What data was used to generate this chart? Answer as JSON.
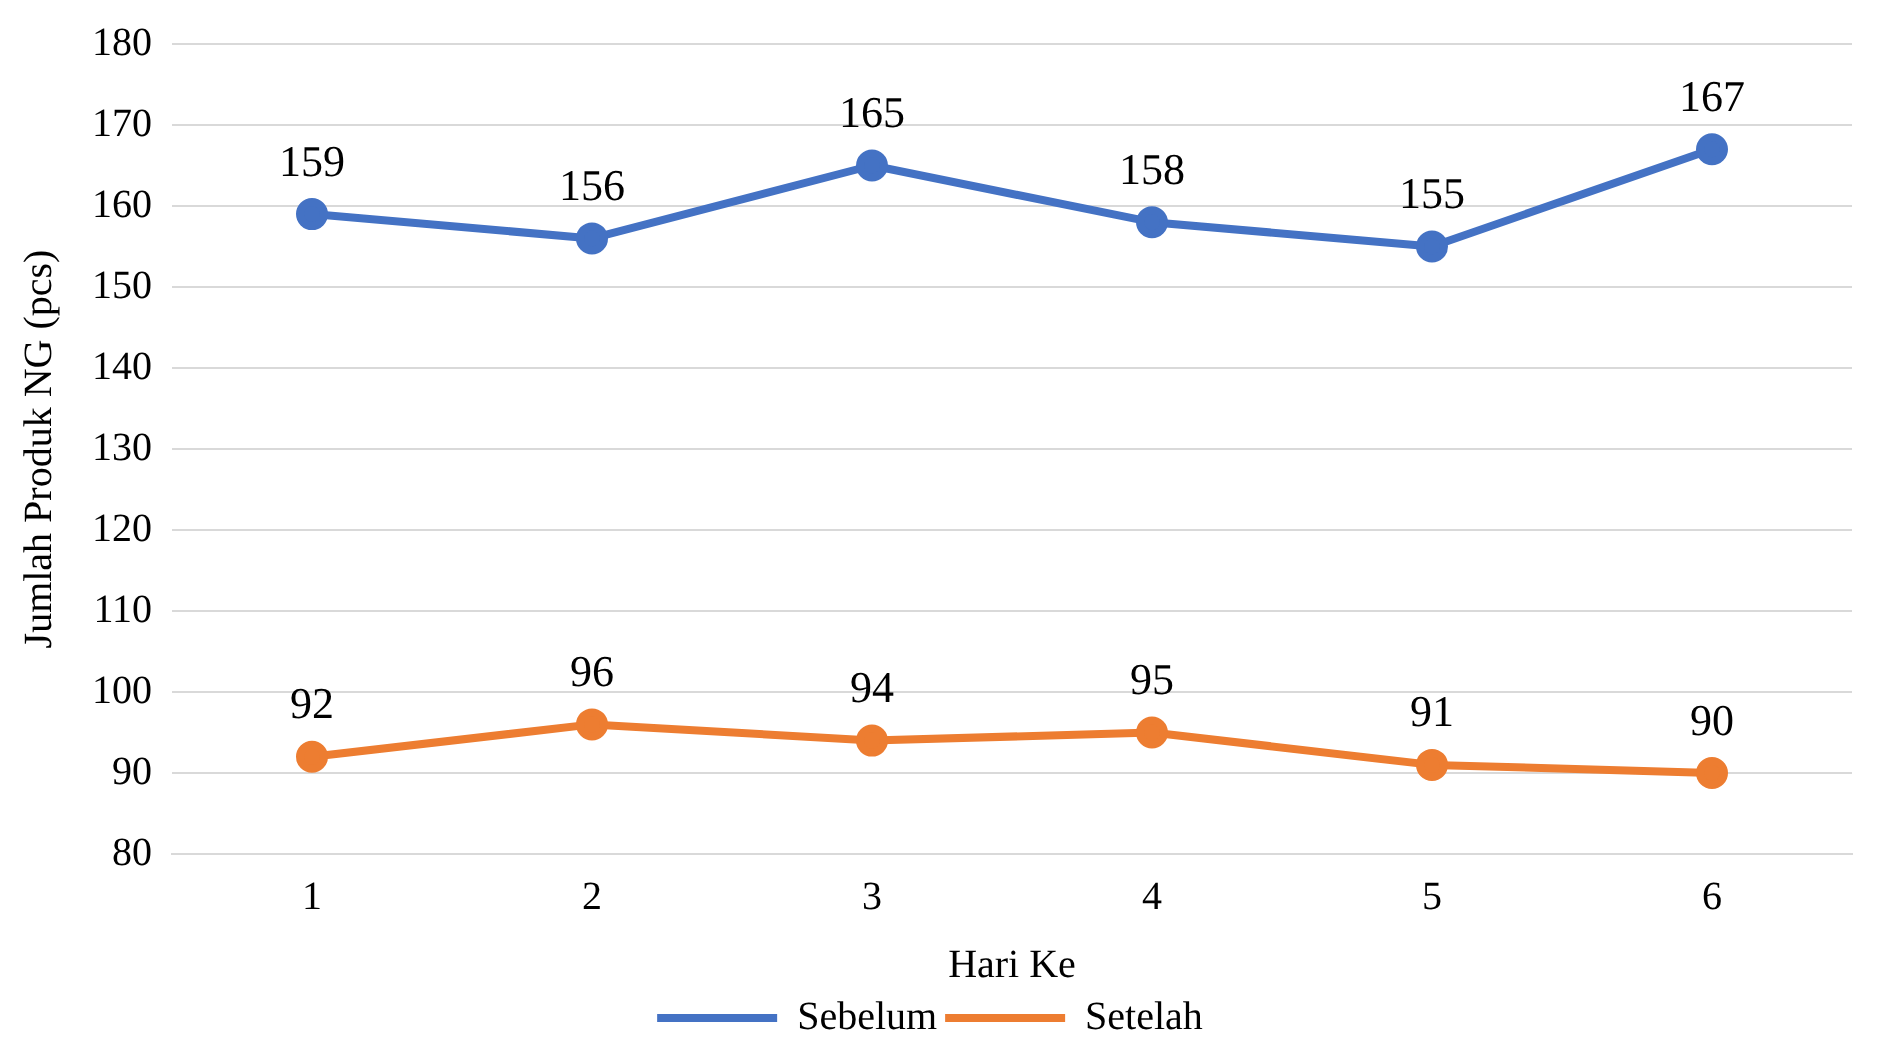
{
  "chart_data": {
    "type": "line",
    "xlabel": "Hari Ke",
    "ylabel": "Jumlah Produk NG (pcs)",
    "categories": [
      "1",
      "2",
      "3",
      "4",
      "5",
      "6"
    ],
    "series": [
      {
        "name": "Sebelum",
        "color": "#4472c4",
        "values": [
          159,
          156,
          165,
          158,
          155,
          167
        ]
      },
      {
        "name": "Setelah",
        "color": "#ed7d31",
        "values": [
          92,
          96,
          94,
          95,
          91,
          90
        ]
      }
    ],
    "ylim": [
      80,
      180
    ],
    "yticks": [
      80,
      90,
      100,
      110,
      120,
      130,
      140,
      150,
      160,
      170,
      180
    ],
    "grid": "y",
    "legend": "bottom",
    "marker": "circle",
    "line_style": "solid",
    "data_labels": true
  }
}
